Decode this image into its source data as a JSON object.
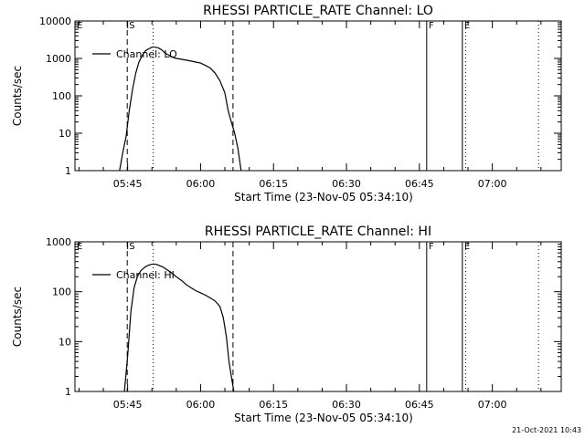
{
  "chart_data": [
    {
      "type": "line",
      "title": "RHESSI PARTICLE_RATE Channel: LO",
      "xlabel": "Start Time (23-Nov-05 05:34:10)",
      "ylabel": "Counts/sec",
      "yscale": "log",
      "ylim": [
        1,
        10000
      ],
      "xlim": [
        "05:34:10",
        "07:14:10"
      ],
      "ytick_labels": [
        "1",
        "10",
        "100",
        "1000",
        "10000"
      ],
      "xtick_labels": [
        "05:45",
        "06:00",
        "06:15",
        "06:30",
        "06:45",
        "07:00"
      ],
      "legend": "Channel: LO",
      "legend_position": "top-left",
      "markers": [
        {
          "label": "E",
          "time": "05:34:10",
          "style": "solid"
        },
        {
          "label": "S",
          "time": "05:44:55",
          "style": "dashed"
        },
        {
          "label": "",
          "time": "05:50:15",
          "style": "dotted"
        },
        {
          "label": "",
          "time": "06:06:40",
          "style": "dashed"
        },
        {
          "label": "F",
          "time": "06:46:30",
          "style": "solid"
        },
        {
          "label": "E",
          "time": "06:53:50",
          "style": "solid"
        },
        {
          "label": "",
          "time": "06:54:30",
          "style": "dotted"
        },
        {
          "label": "",
          "time": "07:09:30",
          "style": "dotted"
        }
      ],
      "x": [
        "05:43:20",
        "05:44:00",
        "05:44:40",
        "05:45:20",
        "05:46:00",
        "05:46:40",
        "05:47:20",
        "05:48:00",
        "05:48:40",
        "05:49:20",
        "05:50:00",
        "05:50:40",
        "05:51:20",
        "05:52:00",
        "05:52:40",
        "05:53:20",
        "05:54:00",
        "05:55:00",
        "05:56:00",
        "05:57:00",
        "05:58:00",
        "05:59:00",
        "06:00:00",
        "06:01:00",
        "06:02:00",
        "06:03:00",
        "06:04:00",
        "06:05:00",
        "06:05:40",
        "06:06:20",
        "06:07:00",
        "06:07:40",
        "06:08:20"
      ],
      "values": [
        1,
        3,
        8,
        40,
        150,
        400,
        800,
        1200,
        1600,
        1800,
        2000,
        2000,
        1900,
        1700,
        1400,
        1250,
        1100,
        1000,
        950,
        900,
        850,
        800,
        750,
        650,
        550,
        400,
        250,
        120,
        40,
        20,
        10,
        4,
        1
      ]
    },
    {
      "type": "line",
      "title": "RHESSI PARTICLE_RATE Channel: HI",
      "xlabel": "Start Time (23-Nov-05 05:34:10)",
      "ylabel": "Counts/sec",
      "yscale": "log",
      "ylim": [
        1,
        1000
      ],
      "xlim": [
        "05:34:10",
        "07:14:10"
      ],
      "ytick_labels": [
        "1",
        "10",
        "100",
        "1000"
      ],
      "xtick_labels": [
        "05:45",
        "06:00",
        "06:15",
        "06:30",
        "06:45",
        "07:00"
      ],
      "legend": "Channel: HI",
      "legend_position": "top-left",
      "markers": [
        {
          "label": "E",
          "time": "05:34:10",
          "style": "solid"
        },
        {
          "label": "S",
          "time": "05:44:55",
          "style": "dashed"
        },
        {
          "label": "",
          "time": "05:50:15",
          "style": "dotted"
        },
        {
          "label": "",
          "time": "06:06:40",
          "style": "dashed"
        },
        {
          "label": "F",
          "time": "06:46:30",
          "style": "solid"
        },
        {
          "label": "E",
          "time": "06:53:50",
          "style": "solid"
        },
        {
          "label": "",
          "time": "06:54:30",
          "style": "dotted"
        },
        {
          "label": "",
          "time": "07:09:30",
          "style": "dotted"
        }
      ],
      "x": [
        "05:44:20",
        "05:45:00",
        "05:45:40",
        "05:46:20",
        "05:47:00",
        "05:47:40",
        "05:48:20",
        "05:49:00",
        "05:49:40",
        "05:50:20",
        "05:51:00",
        "05:51:40",
        "05:52:20",
        "05:53:00",
        "05:54:00",
        "05:55:00",
        "05:56:00",
        "05:57:00",
        "05:58:00",
        "05:59:00",
        "06:00:00",
        "06:01:00",
        "06:02:00",
        "06:03:00",
        "06:04:00",
        "06:04:40",
        "06:05:20",
        "06:05:50",
        "06:06:20",
        "06:06:50"
      ],
      "values": [
        1,
        5,
        40,
        120,
        200,
        260,
        300,
        330,
        350,
        360,
        350,
        330,
        310,
        280,
        240,
        200,
        170,
        140,
        120,
        105,
        95,
        85,
        75,
        65,
        50,
        30,
        12,
        4,
        2,
        1
      ]
    }
  ],
  "timestamp": "21-Oct-2021 10:43"
}
